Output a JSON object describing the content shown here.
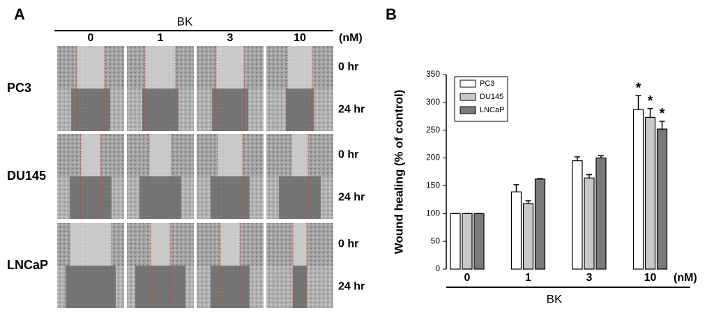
{
  "panel_a": {
    "label": "A",
    "treatment": "BK",
    "doses": [
      "0",
      "1",
      "3",
      "10"
    ],
    "unit": "(nM)",
    "cell_lines": [
      "PC3",
      "DU145",
      "LNCaP"
    ],
    "times": [
      "0 hr",
      "24 hr"
    ]
  },
  "chart_data": {
    "type": "bar",
    "panel_label": "B",
    "ylabel": "Wound healing (% of control)",
    "xlabel": "BK",
    "x_unit": "(nM)",
    "categories": [
      "0",
      "1",
      "3",
      "10"
    ],
    "series": [
      {
        "name": "PC3",
        "color": "#ffffff",
        "values": [
          100,
          139,
          195,
          287
        ],
        "errors": [
          0,
          13,
          7,
          25
        ],
        "markers": [
          null,
          null,
          null,
          "*"
        ]
      },
      {
        "name": "DU145",
        "color": "#c8c8c8",
        "values": [
          100,
          118,
          164,
          273
        ],
        "errors": [
          0,
          5,
          6,
          16
        ],
        "markers": [
          null,
          null,
          null,
          "*"
        ]
      },
      {
        "name": "LNCaP",
        "color": "#7a7a7a",
        "values": [
          100,
          162,
          200,
          252
        ],
        "errors": [
          0,
          1,
          4,
          14
        ],
        "markers": [
          null,
          null,
          null,
          "*"
        ]
      }
    ],
    "ylim": [
      0,
      350
    ],
    "yticks": [
      0,
      50,
      100,
      150,
      200,
      250,
      300,
      350
    ],
    "legend": "upper-left"
  }
}
